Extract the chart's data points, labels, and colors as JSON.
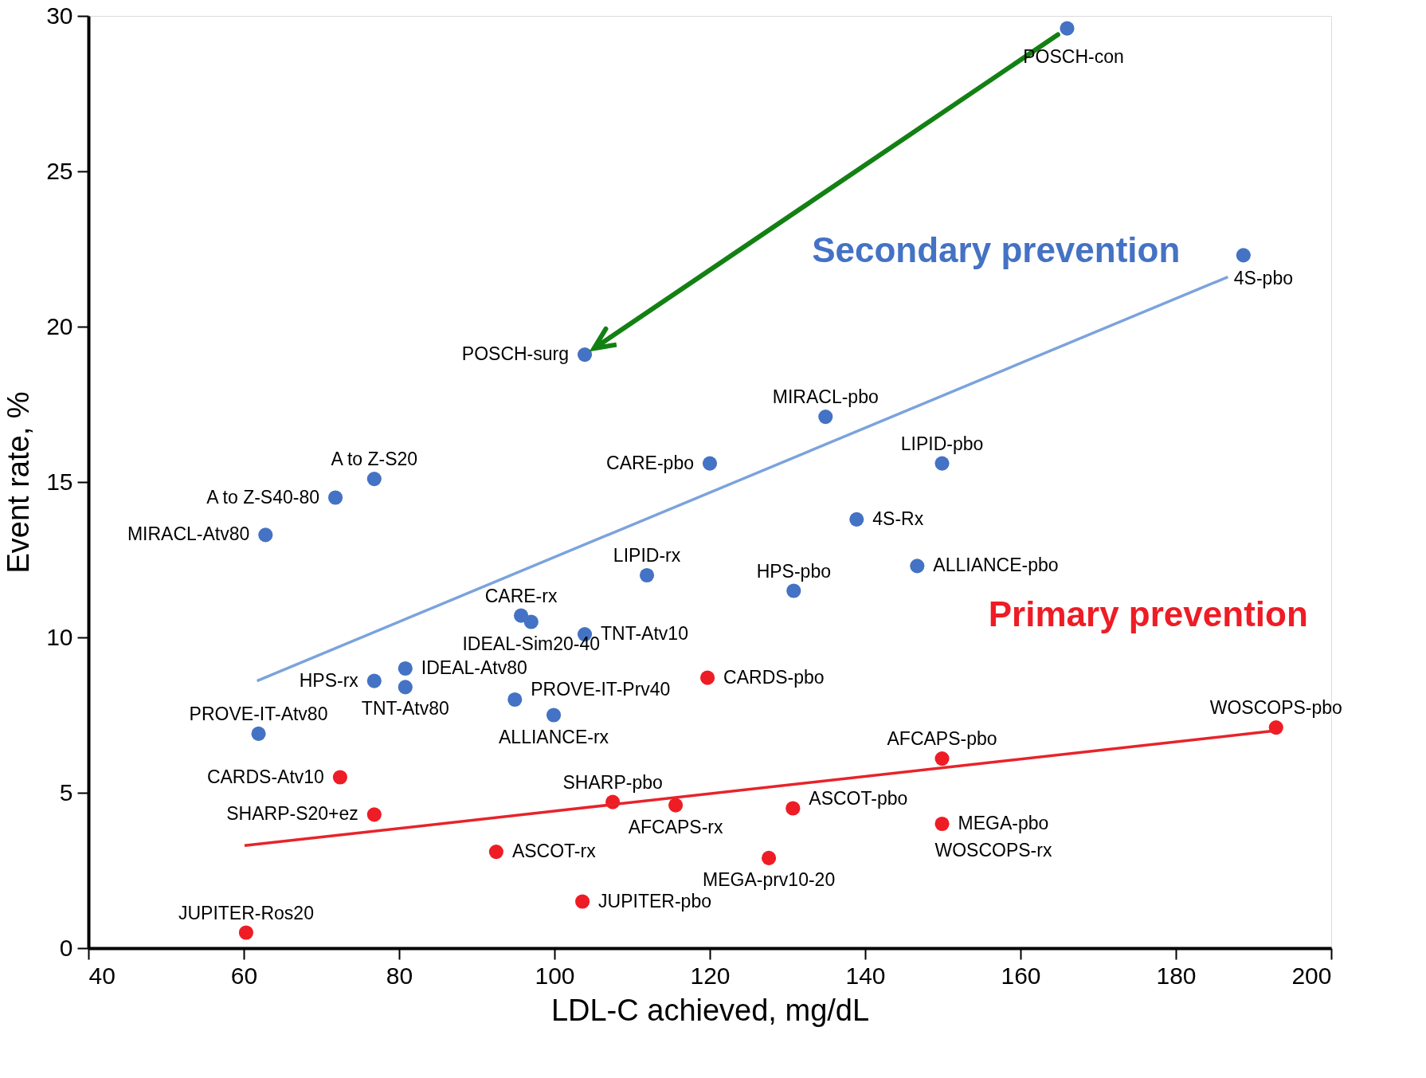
{
  "chart_data": {
    "type": "scatter",
    "xlabel": "LDL-C achieved, mg/dL",
    "ylabel": "Event rate, %",
    "xlim": [
      40,
      200
    ],
    "xticks": [
      40,
      60,
      80,
      100,
      120,
      140,
      160,
      180,
      200
    ],
    "ylim": [
      0,
      30
    ],
    "yticks": [
      0,
      5,
      10,
      15,
      20,
      25,
      30
    ],
    "grid": false,
    "marker": "circle",
    "series": [
      {
        "name": "Secondary prevention",
        "color": "#4472c4",
        "x": [
          166.0,
          188.7,
          103.9,
          134.9,
          120.0,
          149.9,
          76.8,
          71.8,
          62.8,
          138.9,
          111.9,
          146.7,
          130.8,
          95.7,
          97.0,
          103.9,
          80.8,
          76.8,
          80.8,
          94.9,
          99.9,
          61.9
        ],
        "values": [
          29.6,
          22.3,
          19.1,
          17.1,
          15.6,
          15.6,
          15.1,
          14.5,
          13.3,
          13.8,
          12.0,
          12.3,
          11.5,
          10.7,
          10.5,
          10.1,
          9.0,
          8.6,
          8.4,
          8.0,
          7.5,
          6.9
        ]
      },
      {
        "name": "Primary prevention",
        "color": "#ee1c25",
        "x": [
          119.7,
          192.9,
          149.9,
          72.4,
          107.5,
          115.6,
          130.7,
          76.8,
          149.9,
          92.5,
          127.6,
          103.6,
          60.3
        ],
        "values": [
          8.7,
          7.1,
          6.1,
          5.5,
          4.7,
          4.6,
          4.5,
          4.3,
          4.0,
          3.1,
          2.9,
          1.5,
          0.5
        ]
      },
      {
        "type": "line",
        "marker": "none",
        "color": "#7ba3dc",
        "x": [
          61.7,
          186.7
        ],
        "values": [
          8.6,
          21.6
        ]
      },
      {
        "type": "line",
        "marker": "none",
        "color": "#e8232a",
        "x": [
          60.1,
          192.9
        ],
        "values": [
          3.3,
          7.0
        ]
      }
    ],
    "annotations": [
      {
        "text": "POSCH-con",
        "x": 166.0,
        "y": 29.6
      },
      {
        "text": "4S-pbo",
        "x": 188.7,
        "y": 22.3
      },
      {
        "text": "POSCH-surg",
        "x": 103.9,
        "y": 19.1
      },
      {
        "text": "MIRACL-pbo",
        "x": 134.9,
        "y": 17.1
      },
      {
        "text": "CARE-pbo",
        "x": 120.0,
        "y": 15.6
      },
      {
        "text": "LIPID-pbo",
        "x": 149.9,
        "y": 15.6
      },
      {
        "text": "A to Z-S20",
        "x": 76.8,
        "y": 15.1
      },
      {
        "text": "A to Z-S40-80",
        "x": 71.8,
        "y": 14.5
      },
      {
        "text": "MIRACL-Atv80",
        "x": 62.8,
        "y": 13.3
      },
      {
        "text": "4S-Rx",
        "x": 138.9,
        "y": 13.8
      },
      {
        "text": "LIPID-rx",
        "x": 111.9,
        "y": 12.0
      },
      {
        "text": "ALLIANCE-pbo",
        "x": 146.7,
        "y": 12.3
      },
      {
        "text": "HPS-pbo",
        "x": 130.8,
        "y": 11.5
      },
      {
        "text": "CARE-rx",
        "x": 95.7,
        "y": 10.7
      },
      {
        "text": "IDEAL-Sim20-40",
        "x": 97.0,
        "y": 10.5
      },
      {
        "text": "TNT-Atv10",
        "x": 103.9,
        "y": 10.1
      },
      {
        "text": "IDEAL-Atv80",
        "x": 80.8,
        "y": 9.0
      },
      {
        "text": "HPS-rx",
        "x": 76.8,
        "y": 8.6
      },
      {
        "text": "TNT-Atv80",
        "x": 80.8,
        "y": 8.4
      },
      {
        "text": "PROVE-IT-Prv40",
        "x": 94.9,
        "y": 8.0
      },
      {
        "text": "ALLIANCE-rx",
        "x": 99.9,
        "y": 7.5
      },
      {
        "text": "PROVE-IT-Atv80",
        "x": 61.9,
        "y": 6.9
      },
      {
        "text": "CARDS-pbo",
        "x": 119.7,
        "y": 8.7
      },
      {
        "text": "WOSCOPS-pbo",
        "x": 192.9,
        "y": 7.1
      },
      {
        "text": "AFCAPS-pbo",
        "x": 149.9,
        "y": 6.1
      },
      {
        "text": "CARDS-Atv10",
        "x": 72.4,
        "y": 5.5
      },
      {
        "text": "SHARP-pbo",
        "x": 107.5,
        "y": 4.7
      },
      {
        "text": "AFCAPS-rx",
        "x": 115.6,
        "y": 4.6
      },
      {
        "text": "ASCOT-pbo",
        "x": 130.7,
        "y": 4.5
      },
      {
        "text": "SHARP-S20+ez",
        "x": 76.8,
        "y": 4.3
      },
      {
        "text": "MEGA-pbo",
        "x": 149.9,
        "y": 4.0
      },
      {
        "text": "WOSCOPS-rx",
        "x": 150.2,
        "y": 3.9
      },
      {
        "text": "ASCOT-rx",
        "x": 92.5,
        "y": 3.1
      },
      {
        "text": "MEGA-prv10-20",
        "x": 127.6,
        "y": 2.9
      },
      {
        "text": "JUPITER-pbo",
        "x": 103.6,
        "y": 1.5
      },
      {
        "text": "JUPITER-Ros20",
        "x": 60.3,
        "y": 0.5
      }
    ]
  }
}
